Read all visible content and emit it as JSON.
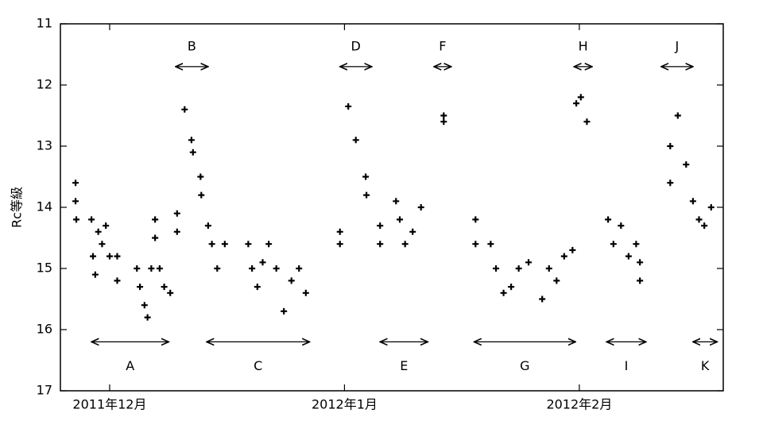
{
  "chart_data": {
    "type": "scatter",
    "ylabel": "Rc等級",
    "color": "#000000",
    "y_inverted": true,
    "x": [
      -4.5,
      -4.5,
      -4.4,
      -2.4,
      -2.2,
      -1.9,
      -1.5,
      -1.0,
      -0.5,
      0.0,
      1.0,
      1.0,
      3.6,
      4.0,
      4.6,
      5.0,
      5.5,
      6.0,
      6.0,
      6.6,
      7.2,
      8.0,
      8.9,
      8.9,
      9.9,
      10.8,
      11.0,
      12.0,
      12.1,
      13.0,
      13.5,
      14.2,
      15.2,
      18.3,
      18.8,
      19.5,
      20.2,
      21.0,
      22.0,
      23.0,
      24.0,
      25.0,
      25.9,
      30.4,
      30.4,
      31.5,
      32.5,
      33.8,
      33.9,
      35.7,
      35.7,
      37.8,
      38.3,
      39.0,
      40.0,
      41.1,
      44.1,
      44.1,
      48.3,
      48.3,
      50.3,
      51.0,
      52.0,
      53.0,
      54.0,
      55.3,
      57.1,
      58.0,
      59.0,
      60.0,
      61.1,
      61.6,
      62.2,
      63.0,
      65.8,
      66.5,
      67.5,
      68.5,
      69.5,
      70.0,
      70.0,
      74.0,
      74.0,
      75.0,
      76.1,
      77.0,
      77.8,
      78.5,
      79.4
    ],
    "values": [
      13.6,
      13.9,
      14.2,
      14.2,
      14.8,
      15.1,
      14.4,
      14.6,
      14.3,
      14.8,
      14.8,
      15.2,
      15.0,
      15.3,
      15.6,
      15.8,
      15.0,
      14.2,
      14.5,
      15.0,
      15.3,
      15.4,
      14.1,
      14.4,
      12.4,
      12.9,
      13.1,
      13.5,
      13.8,
      14.3,
      14.6,
      15.0,
      14.6,
      14.6,
      15.0,
      15.3,
      14.9,
      14.6,
      15.0,
      15.7,
      15.2,
      15.0,
      15.4,
      14.4,
      14.6,
      12.35,
      12.9,
      13.5,
      13.8,
      14.3,
      14.6,
      13.9,
      14.2,
      14.6,
      14.4,
      14.0,
      12.5,
      12.6,
      14.2,
      14.6,
      14.6,
      15.0,
      15.4,
      15.3,
      15.0,
      14.9,
      15.5,
      15.0,
      15.2,
      14.8,
      14.7,
      12.3,
      12.2,
      12.6,
      14.2,
      14.6,
      14.3,
      14.8,
      14.6,
      14.9,
      15.2,
      13.0,
      13.6,
      12.5,
      13.3,
      13.9,
      14.2,
      14.3,
      14.0
    ],
    "xlim": [
      -6.5,
      81
    ],
    "ylim": [
      17,
      11
    ],
    "xticks": [
      {
        "value": 0,
        "label": "2011年12月"
      },
      {
        "value": 31,
        "label": "2012年1月"
      },
      {
        "value": 62,
        "label": "2012年2月"
      }
    ],
    "yticks": [
      11,
      12,
      13,
      14,
      15,
      16,
      17
    ],
    "annotations": [
      {
        "text": "A",
        "x1": -2.4,
        "x2": 7.8,
        "y": 16.2
      },
      {
        "text": "B",
        "x1": 8.7,
        "x2": 13.0,
        "y": 11.7
      },
      {
        "text": "C",
        "x1": 12.8,
        "x2": 26.4,
        "y": 16.2
      },
      {
        "text": "D",
        "x1": 30.4,
        "x2": 34.6,
        "y": 11.7
      },
      {
        "text": "E",
        "x1": 35.7,
        "x2": 42.0,
        "y": 16.2
      },
      {
        "text": "F",
        "x1": 42.8,
        "x2": 45.1,
        "y": 11.7
      },
      {
        "text": "G",
        "x1": 48.1,
        "x2": 61.5,
        "y": 16.2
      },
      {
        "text": "H",
        "x1": 61.3,
        "x2": 63.7,
        "y": 11.7
      },
      {
        "text": "I",
        "x1": 65.6,
        "x2": 70.8,
        "y": 16.2
      },
      {
        "text": "J",
        "x1": 72.8,
        "x2": 77.0,
        "y": 11.7
      },
      {
        "text": "K",
        "x1": 77.0,
        "x2": 80.2,
        "y": 16.2
      }
    ]
  }
}
